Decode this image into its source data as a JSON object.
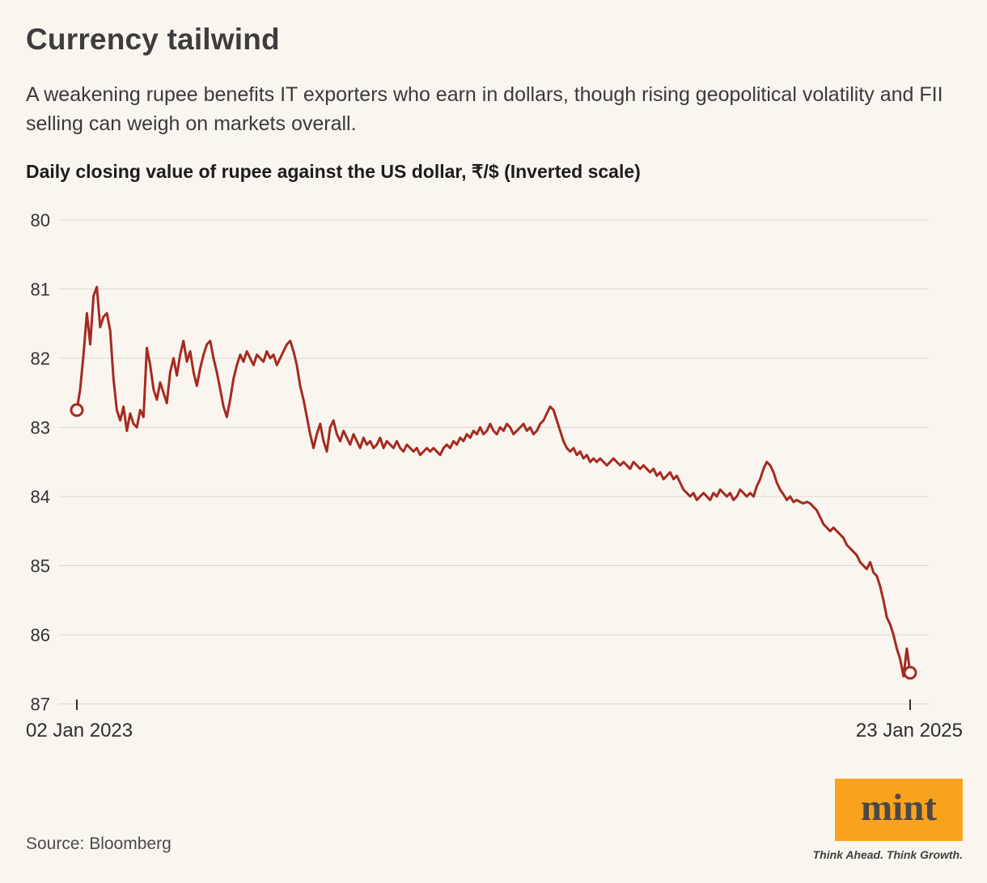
{
  "page": {
    "background": "#faf6ef"
  },
  "header": {
    "title": "Currency tailwind",
    "subtitle": "A weakening rupee benefits IT exporters who earn in dollars, though rising geopolitical volatility and FII selling can weigh on markets overall."
  },
  "chart_data": {
    "type": "line",
    "title": "Daily closing value of rupee against the US dollar, ₹/$ (Inverted scale)",
    "series_name": "Rupee per US dollar, daily close",
    "x_start_label": "02 Jan 2023",
    "x_end_label": "23 Jan 2025",
    "y_ticks": [
      80,
      81,
      82,
      83,
      84,
      85,
      86,
      87
    ],
    "ylim": [
      80,
      87
    ],
    "y_inverted": true,
    "grid": true,
    "line_color": "#a52a21",
    "start_value": 82.75,
    "end_value": 86.55,
    "values": [
      82.75,
      82.45,
      81.95,
      81.35,
      81.8,
      81.1,
      80.97,
      81.55,
      81.4,
      81.35,
      81.6,
      82.3,
      82.75,
      82.9,
      82.7,
      83.05,
      82.8,
      82.95,
      83.0,
      82.75,
      82.85,
      81.85,
      82.1,
      82.45,
      82.6,
      82.35,
      82.5,
      82.65,
      82.2,
      82.0,
      82.25,
      81.95,
      81.75,
      82.05,
      81.9,
      82.2,
      82.4,
      82.15,
      81.95,
      81.8,
      81.75,
      82.0,
      82.2,
      82.45,
      82.7,
      82.85,
      82.6,
      82.3,
      82.1,
      81.95,
      82.05,
      81.9,
      82.0,
      82.1,
      81.95,
      82.0,
      82.05,
      81.9,
      82.0,
      81.95,
      82.1,
      82.0,
      81.9,
      81.8,
      81.75,
      81.9,
      82.1,
      82.4,
      82.6,
      82.85,
      83.1,
      83.3,
      83.1,
      82.95,
      83.2,
      83.35,
      83.0,
      82.9,
      83.1,
      83.2,
      83.05,
      83.15,
      83.25,
      83.1,
      83.2,
      83.3,
      83.15,
      83.25,
      83.2,
      83.3,
      83.25,
      83.15,
      83.3,
      83.2,
      83.25,
      83.3,
      83.2,
      83.3,
      83.35,
      83.25,
      83.3,
      83.35,
      83.3,
      83.4,
      83.35,
      83.3,
      83.35,
      83.3,
      83.35,
      83.4,
      83.3,
      83.25,
      83.3,
      83.2,
      83.25,
      83.15,
      83.2,
      83.1,
      83.15,
      83.05,
      83.1,
      83.0,
      83.1,
      83.05,
      82.95,
      83.05,
      83.1,
      83.0,
      83.05,
      82.95,
      83.0,
      83.1,
      83.05,
      83.0,
      82.95,
      83.05,
      83.0,
      83.1,
      83.05,
      82.95,
      82.9,
      82.8,
      82.7,
      82.75,
      82.9,
      83.05,
      83.2,
      83.3,
      83.35,
      83.3,
      83.4,
      83.35,
      83.45,
      83.4,
      83.5,
      83.45,
      83.5,
      83.45,
      83.5,
      83.55,
      83.5,
      83.45,
      83.5,
      83.55,
      83.5,
      83.55,
      83.6,
      83.5,
      83.55,
      83.6,
      83.55,
      83.6,
      83.65,
      83.6,
      83.7,
      83.65,
      83.75,
      83.7,
      83.65,
      83.75,
      83.7,
      83.8,
      83.9,
      83.95,
      84.0,
      83.95,
      84.05,
      84.0,
      83.95,
      84.0,
      84.05,
      83.95,
      84.0,
      83.9,
      83.95,
      84.0,
      83.95,
      84.05,
      84.0,
      83.9,
      83.95,
      84.0,
      83.95,
      84.0,
      83.85,
      83.75,
      83.6,
      83.5,
      83.55,
      83.65,
      83.8,
      83.9,
      83.97,
      84.05,
      84.0,
      84.08,
      84.05,
      84.08,
      84.1,
      84.08,
      84.1,
      84.15,
      84.2,
      84.3,
      84.4,
      84.45,
      84.5,
      84.45,
      84.5,
      84.55,
      84.6,
      84.7,
      84.75,
      84.8,
      84.85,
      84.95,
      85.0,
      85.05,
      84.95,
      85.1,
      85.15,
      85.3,
      85.5,
      85.75,
      85.85,
      86.0,
      86.2,
      86.35,
      86.6,
      86.2,
      86.55
    ]
  },
  "footer": {
    "source": "Source: Bloomberg",
    "logo_text": "mint",
    "logo_tagline": "Think Ahead. Think Growth.",
    "logo_bg": "#f9a21e"
  }
}
